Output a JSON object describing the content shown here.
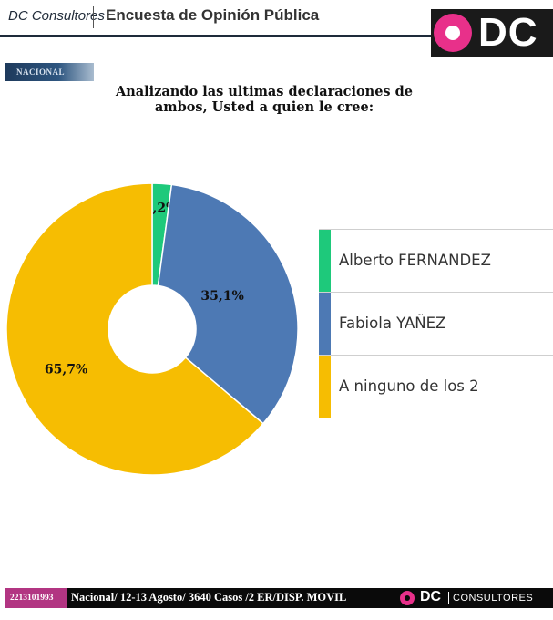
{
  "header": {
    "brand": "DC Consultores",
    "title": "Encuesta de Opinión Pública",
    "logo_text": "DC"
  },
  "tab": {
    "label": "NACIONAL"
  },
  "question": {
    "line1": "Analizando las ultimas declaraciones de",
    "line2": "ambos, Usted a quien le cree:"
  },
  "chart_data": {
    "type": "pie",
    "title": "Analizando las ultimas declaraciones de ambos, Usted a quien le cree:",
    "categories": [
      "Alberto FERNANDEZ",
      "Fabiola YAÑEZ",
      "A ninguno de los 2"
    ],
    "values": [
      2.2,
      35.1,
      65.7
    ],
    "labels": [
      "2,2%",
      "35,1%",
      "65,7%"
    ],
    "colors": [
      "#1ec97b",
      "#4d79b4",
      "#f6bd02"
    ],
    "donut": true,
    "legend_position": "right"
  },
  "footer": {
    "phone": "2213101993",
    "info": "Nacional/ 12-13 Agosto/ 3640 Casos  /2 ER/DISP. MOVIL",
    "logo_dc": "DC",
    "logo_word": "CONSULTORES"
  }
}
